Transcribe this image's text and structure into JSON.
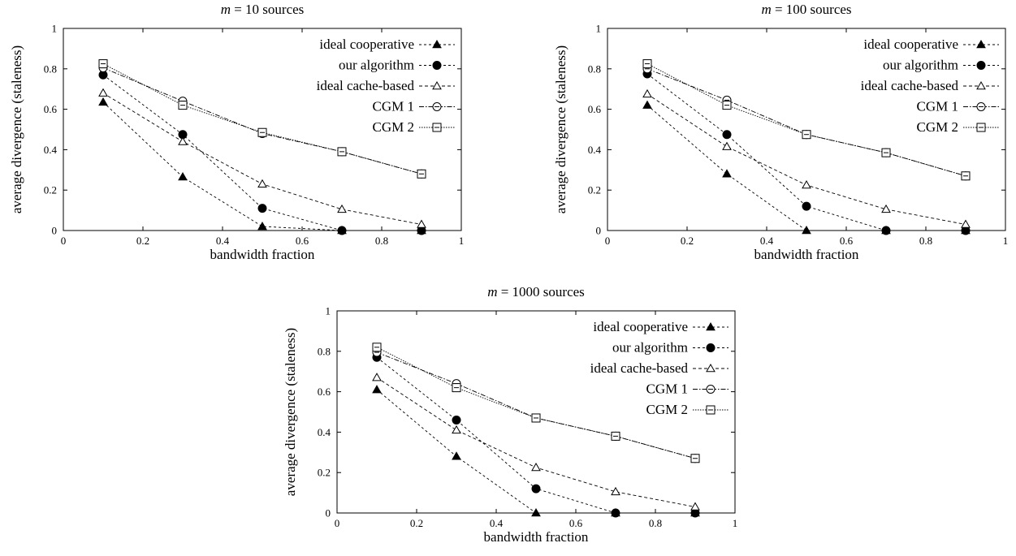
{
  "chart_data": [
    {
      "type": "line",
      "title": "m = 10 sources",
      "title_var": "m",
      "title_rest": " = 10 sources",
      "xlabel": "bandwidth fraction",
      "ylabel": "average divergence (staleness)",
      "xlim": [
        0,
        1
      ],
      "ylim": [
        0,
        1
      ],
      "xticks": [
        "0",
        "0.2",
        "0.4",
        "0.6",
        "0.8",
        "1"
      ],
      "yticks": [
        "0",
        "0.2",
        "0.4",
        "0.6",
        "0.8",
        "1"
      ],
      "grid": false,
      "legend_position": "top-right",
      "x": [
        0.1,
        0.3,
        0.5,
        0.7,
        0.9
      ],
      "series": [
        {
          "name": "ideal cooperative",
          "marker": "filled-triangle",
          "values": [
            0.635,
            0.265,
            0.02,
            0.0,
            0.0
          ]
        },
        {
          "name": "our algorithm",
          "marker": "filled-circle",
          "values": [
            0.77,
            0.475,
            0.11,
            0.0,
            0.0
          ]
        },
        {
          "name": "ideal cache-based",
          "marker": "open-triangle",
          "values": [
            0.68,
            0.44,
            0.23,
            0.105,
            0.03
          ]
        },
        {
          "name": "CGM 1",
          "marker": "open-circle-dot",
          "values": [
            0.805,
            0.64,
            0.48,
            0.39,
            0.28
          ]
        },
        {
          "name": "CGM 2",
          "marker": "open-square-dot",
          "values": [
            0.825,
            0.62,
            0.485,
            0.39,
            0.28
          ]
        }
      ]
    },
    {
      "type": "line",
      "title": "m = 100 sources",
      "title_var": "m",
      "title_rest": " = 100 sources",
      "xlabel": "bandwidth fraction",
      "ylabel": "average divergence (staleness)",
      "xlim": [
        0,
        1
      ],
      "ylim": [
        0,
        1
      ],
      "xticks": [
        "0",
        "0.2",
        "0.4",
        "0.6",
        "0.8",
        "1"
      ],
      "yticks": [
        "0",
        "0.2",
        "0.4",
        "0.6",
        "0.8",
        "1"
      ],
      "grid": false,
      "legend_position": "top-right",
      "x": [
        0.1,
        0.3,
        0.5,
        0.7,
        0.9
      ],
      "series": [
        {
          "name": "ideal cooperative",
          "marker": "filled-triangle",
          "values": [
            0.62,
            0.28,
            0.0,
            0.0,
            0.0
          ]
        },
        {
          "name": "our algorithm",
          "marker": "filled-circle",
          "values": [
            0.775,
            0.475,
            0.12,
            0.0,
            0.0
          ]
        },
        {
          "name": "ideal cache-based",
          "marker": "open-triangle",
          "values": [
            0.675,
            0.415,
            0.225,
            0.105,
            0.03
          ]
        },
        {
          "name": "CGM 1",
          "marker": "open-circle-dot",
          "values": [
            0.8,
            0.645,
            0.475,
            0.385,
            0.27
          ]
        },
        {
          "name": "CGM 2",
          "marker": "open-square-dot",
          "values": [
            0.825,
            0.62,
            0.475,
            0.385,
            0.27
          ]
        }
      ]
    },
    {
      "type": "line",
      "title": "m = 1000 sources",
      "title_var": "m",
      "title_rest": " = 1000 sources",
      "xlabel": "bandwidth fraction",
      "ylabel": "average divergence (staleness)",
      "xlim": [
        0,
        1
      ],
      "ylim": [
        0,
        1
      ],
      "xticks": [
        "0",
        "0.2",
        "0.4",
        "0.6",
        "0.8",
        "1"
      ],
      "yticks": [
        "0",
        "0.2",
        "0.4",
        "0.6",
        "0.8",
        "1"
      ],
      "grid": false,
      "legend_position": "top-right",
      "x": [
        0.1,
        0.3,
        0.5,
        0.7,
        0.9
      ],
      "series": [
        {
          "name": "ideal cooperative",
          "marker": "filled-triangle",
          "values": [
            0.61,
            0.28,
            0.0,
            0.0,
            0.0
          ]
        },
        {
          "name": "our algorithm",
          "marker": "filled-circle",
          "values": [
            0.77,
            0.46,
            0.12,
            0.0,
            0.0
          ]
        },
        {
          "name": "ideal cache-based",
          "marker": "open-triangle",
          "values": [
            0.67,
            0.41,
            0.225,
            0.105,
            0.03
          ]
        },
        {
          "name": "CGM 1",
          "marker": "open-circle-dot",
          "values": [
            0.795,
            0.64,
            0.47,
            0.38,
            0.27
          ]
        },
        {
          "name": "CGM 2",
          "marker": "open-square-dot",
          "values": [
            0.82,
            0.62,
            0.47,
            0.38,
            0.27
          ]
        }
      ]
    }
  ]
}
